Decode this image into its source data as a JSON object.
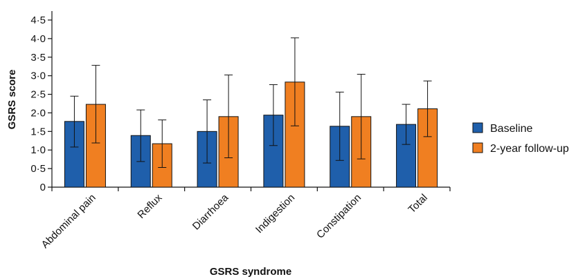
{
  "chart_data": {
    "type": "bar",
    "xlabel": "GSRS syndrome",
    "ylabel": "GSRS score",
    "ylim": [
      0,
      4.5
    ],
    "yticks": [
      "0",
      "0·5",
      "1·0",
      "1·5",
      "2·0",
      "2·5",
      "3·0",
      "3·5",
      "4·0",
      "4·5"
    ],
    "categories": [
      "Abdominal pain",
      "Reflux",
      "Diarrhoea",
      "Indigestion",
      "Constipation",
      "Total"
    ],
    "series": [
      {
        "name": "Baseline",
        "color": "#1f5fab",
        "values": [
          1.77,
          1.39,
          1.5,
          1.94,
          1.64,
          1.69
        ],
        "error_low": [
          1.08,
          0.69,
          0.65,
          1.12,
          0.72,
          1.15
        ],
        "error_high": [
          2.45,
          2.08,
          2.35,
          2.76,
          2.56,
          2.23
        ]
      },
      {
        "name": "2-year follow-up",
        "color": "#f07f21",
        "values": [
          2.23,
          1.17,
          1.9,
          2.83,
          1.9,
          2.11
        ],
        "error_low": [
          1.19,
          0.53,
          0.79,
          1.65,
          0.76,
          1.36
        ],
        "error_high": [
          3.28,
          1.81,
          3.02,
          4.02,
          3.04,
          2.86
        ]
      }
    ],
    "legend_position": "right",
    "grid": false
  }
}
